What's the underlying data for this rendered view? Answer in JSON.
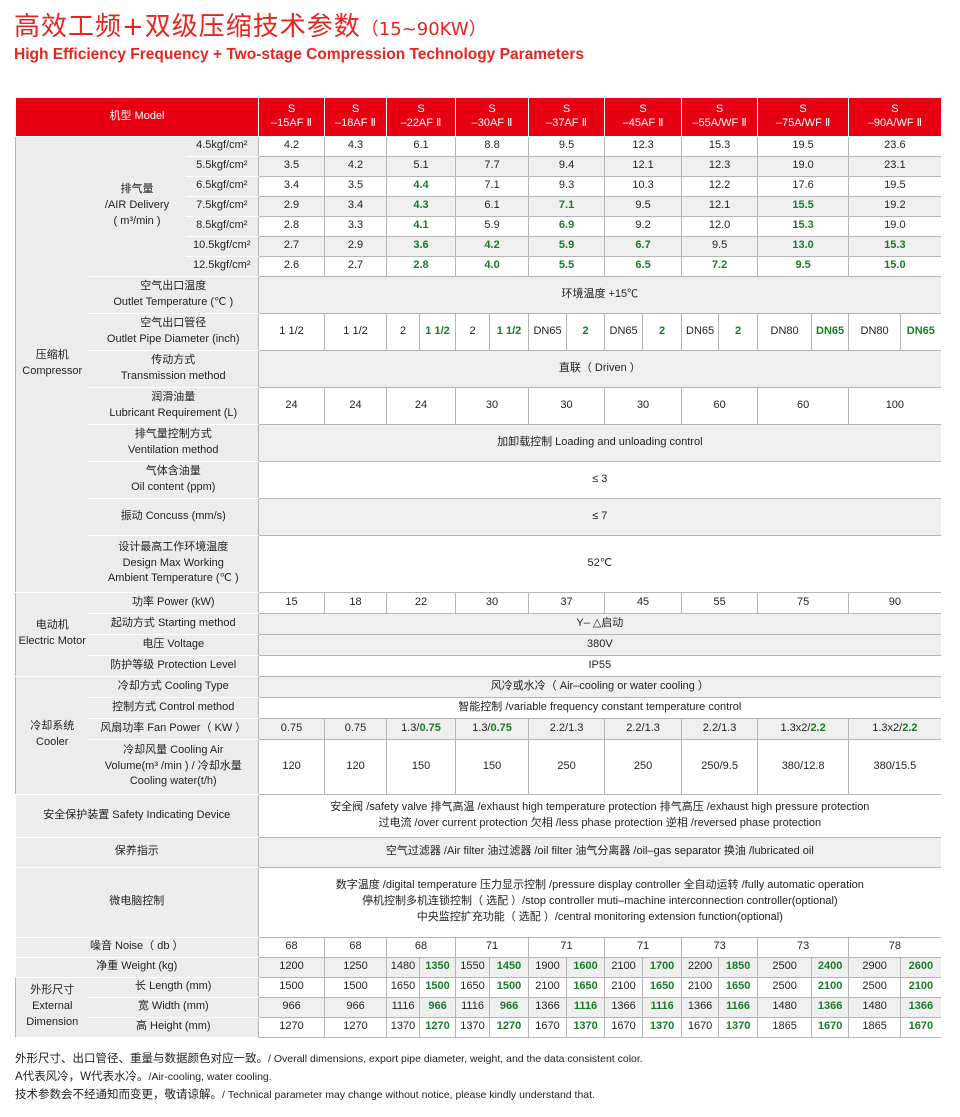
{
  "title": {
    "main": "高效工频+双级压缩技术参数",
    "range": "（15~90KW）",
    "subtitle": "High Efficiency Frequency + Two-stage Compression Technology Parameters"
  },
  "colors": {
    "accent": "#e60012",
    "highlight": "#1a7a2a",
    "label_bg": "#ececec"
  },
  "model_label": "机型 Model",
  "models": [
    [
      "S",
      "–15AF Ⅱ"
    ],
    [
      "S",
      "–18AF Ⅱ"
    ],
    [
      "S",
      "–22AF Ⅱ"
    ],
    [
      "S",
      "–30AF Ⅱ"
    ],
    [
      "S",
      "–37AF Ⅱ"
    ],
    [
      "S",
      "–45AF Ⅱ"
    ],
    [
      "S",
      "–55A/WF Ⅱ"
    ],
    [
      "S",
      "–75A/WF Ⅱ"
    ],
    [
      "S",
      "–90A/WF Ⅱ"
    ]
  ],
  "groups": {
    "compressor": "压缩机\nCompressor",
    "motor": "电动机\nElectric Motor",
    "cooler": "冷却系统\nCooler",
    "dimension": "外形尺寸\nExternal\nDimension"
  },
  "air_delivery": {
    "label": "排气量\n/AIR Delivery\n( m³/min )",
    "rows": [
      {
        "pressure": "4.5kgf/cm²",
        "values": [
          "4.2",
          "4.3",
          "6.1",
          "8.8",
          "9.5",
          "12.3",
          "15.3",
          "19.5",
          "23.6"
        ],
        "green": []
      },
      {
        "pressure": "5.5kgf/cm²",
        "values": [
          "3.5",
          "4.2",
          "5.1",
          "7.7",
          "9.4",
          "12.1",
          "12.3",
          "19.0",
          "23.1"
        ],
        "green": []
      },
      {
        "pressure": "6.5kgf/cm²",
        "values": [
          "3.4",
          "3.5",
          "4.4",
          "7.1",
          "9.3",
          "10.3",
          "12.2",
          "17.6",
          "19.5"
        ],
        "green": [
          2
        ]
      },
      {
        "pressure": "7.5kgf/cm²",
        "values": [
          "2.9",
          "3.4",
          "4.3",
          "6.1",
          "7.1",
          "9.5",
          "12.1",
          "15.5",
          "19.2"
        ],
        "green": [
          2,
          4,
          7
        ]
      },
      {
        "pressure": "8.5kgf/cm²",
        "values": [
          "2.8",
          "3.3",
          "4.1",
          "5.9",
          "6.9",
          "9.2",
          "12.0",
          "15.3",
          "19.0"
        ],
        "green": [
          2,
          4,
          7
        ]
      },
      {
        "pressure": "10.5kgf/cm²",
        "values": [
          "2.7",
          "2.9",
          "3.6",
          "4.2",
          "5.9",
          "6.7",
          "9.5",
          "13.0",
          "15.3"
        ],
        "green": [
          2,
          3,
          4,
          5,
          7,
          8
        ]
      },
      {
        "pressure": "12.5kgf/cm²",
        "values": [
          "2.6",
          "2.7",
          "2.8",
          "4.0",
          "5.5",
          "6.5",
          "7.2",
          "9.5",
          "15.0"
        ],
        "green": [
          2,
          3,
          4,
          5,
          6,
          7,
          8
        ]
      }
    ]
  },
  "compressor_rows": [
    {
      "label": "空气出口温度\nOutlet Temperature (℃ )",
      "span": "环境温度 +15℃"
    },
    {
      "label": "空气出口管径\nOutlet Pipe Diameter (inch)",
      "values": [
        "1 1/2",
        "1 1/2",
        [
          "2",
          "1 1/2"
        ],
        [
          "2",
          "1 1/2"
        ],
        [
          "DN65",
          "2"
        ],
        [
          "DN65",
          "2"
        ],
        [
          "DN65",
          "2"
        ],
        [
          "DN80",
          "DN65"
        ],
        [
          "DN80",
          "DN65"
        ]
      ]
    },
    {
      "label": "传动方式\nTransmission method",
      "span": "直联（ Driven ）"
    },
    {
      "label": "润滑油量\nLubricant Requirement (L)",
      "values": [
        "24",
        "24",
        "24",
        "30",
        "30",
        "30",
        "60",
        "60",
        "100"
      ]
    },
    {
      "label": "排气量控制方式\nVentilation method",
      "span": "加卸载控制 Loading and unloading control"
    },
    {
      "label": "气体含油量\nOil content (ppm)",
      "span": "≤ 3"
    },
    {
      "label": "振动 Concuss (mm/s)",
      "span": "≤ 7"
    },
    {
      "label": "设计最高工作环境温度\nDesign Max Working\nAmbient  Temperature (℃ )",
      "span": "52℃"
    }
  ],
  "motor_rows": [
    {
      "label": "功率 Power (kW)",
      "values": [
        "15",
        "18",
        "22",
        "30",
        "37",
        "45",
        "55",
        "75",
        "90"
      ]
    },
    {
      "label": "起动方式 Starting method",
      "span": "Y– △启动"
    },
    {
      "label": "电压 Voltage",
      "span": "380V"
    },
    {
      "label": "防护等级 Protection Level",
      "span": "IP55"
    }
  ],
  "cooler_rows": [
    {
      "label": "冷却方式 Cooling Type",
      "span": "风冷或水冷（ Air–cooling or water cooling ）"
    },
    {
      "label": "控制方式 Control method",
      "span": "智能控制 /variable frequency constant temperature control"
    },
    {
      "label": "风扇功率 Fan Power（ KW ）",
      "values": [
        "0.75",
        "0.75",
        {
          "a": "1.3/",
          "b": "0.75"
        },
        {
          "a": "1.3/",
          "b": "0.75"
        },
        "2.2/1.3",
        "2.2/1.3",
        "2.2/1.3",
        {
          "a": "1.3x2/",
          "b": "2.2"
        },
        {
          "a": "1.3x2/",
          "b": "2.2"
        }
      ]
    },
    {
      "label": "冷却风量 Cooling Air\nVolume(m³ /min ) / 冷却水量\nCooling water(t/h)",
      "values": [
        "120",
        "120",
        "150",
        "150",
        "250",
        "250",
        "250/9.5",
        "380/12.8",
        "380/15.5"
      ]
    }
  ],
  "misc_rows": [
    {
      "label": "安全保护装置 Safety Indicating Device",
      "span": "安全阀 /safety valve  排气高温 /exhaust high temperature protection  排气高压 /exhaust high pressure protection\n过电流 /over current protection  欠相 /less phase protection  逆相 /reversed phase  protection"
    },
    {
      "label": "保养指示",
      "span": "空气过滤器 /Air filter  油过滤器 /oil filter   油气分离器 /oil–gas separator  换油 /lubricated oil"
    },
    {
      "label": "微电脑控制",
      "span": "数字温度 /digital temperature  压力显示控制 /pressure display controller  全自动运转 /fully automatic operation\n停机控制多机连锁控制（ 选配 ）/stop controller muti–machine interconnection controller(optional)\n中央监控扩充功能（ 选配 ）/central monitoring extension function(optional)"
    },
    {
      "label": "噪音 Noise（ db ）",
      "values": [
        "68",
        "68",
        "68",
        "71",
        "71",
        "71",
        "73",
        "73",
        "78"
      ]
    },
    {
      "label": "净重 Weight (kg)",
      "values": [
        "1200",
        "1250",
        [
          "1480",
          "1350"
        ],
        [
          "1550",
          "1450"
        ],
        [
          "1900",
          "1600"
        ],
        [
          "2100",
          "1700"
        ],
        [
          "2200",
          "1850"
        ],
        [
          "2500",
          "2400"
        ],
        [
          "2900",
          "2600"
        ]
      ]
    }
  ],
  "dimension_rows": [
    {
      "label": "长 Length  (mm)",
      "values": [
        "1500",
        "1500",
        [
          "1650",
          "1500"
        ],
        [
          "1650",
          "1500"
        ],
        [
          "2100",
          "1650"
        ],
        [
          "2100",
          "1650"
        ],
        [
          "2100",
          "1650"
        ],
        [
          "2500",
          "2100"
        ],
        [
          "2500",
          "2100"
        ]
      ]
    },
    {
      "label": "宽 Width   (mm)",
      "values": [
        "966",
        "966",
        [
          "1116",
          "966"
        ],
        [
          "1116",
          "966"
        ],
        [
          "1366",
          "1116"
        ],
        [
          "1366",
          "1116"
        ],
        [
          "1366",
          "1166"
        ],
        [
          "1480",
          "1366"
        ],
        [
          "1480",
          "1366"
        ]
      ]
    },
    {
      "label": "高 Height  (mm)",
      "values": [
        "1270",
        "1270",
        [
          "1370",
          "1270"
        ],
        [
          "1370",
          "1270"
        ],
        [
          "1670",
          "1370"
        ],
        [
          "1670",
          "1370"
        ],
        [
          "1670",
          "1370"
        ],
        [
          "1865",
          "1670"
        ],
        [
          "1865",
          "1670"
        ]
      ]
    }
  ],
  "notes": [
    {
      "cn": "外形尺寸、出口管径、重量与数据颜色对应一致。",
      "en": "/ Overall dimensions, export pipe diameter, weight, and the data consistent color."
    },
    {
      "cn": "A代表风冷，W代表水冷。",
      "en": "/Air-cooling, water cooling."
    },
    {
      "cn": "技术参数会不经通知而变更，敬请谅解。",
      "en": "/ Technical parameter may change without notice, please kindly understand that."
    }
  ]
}
